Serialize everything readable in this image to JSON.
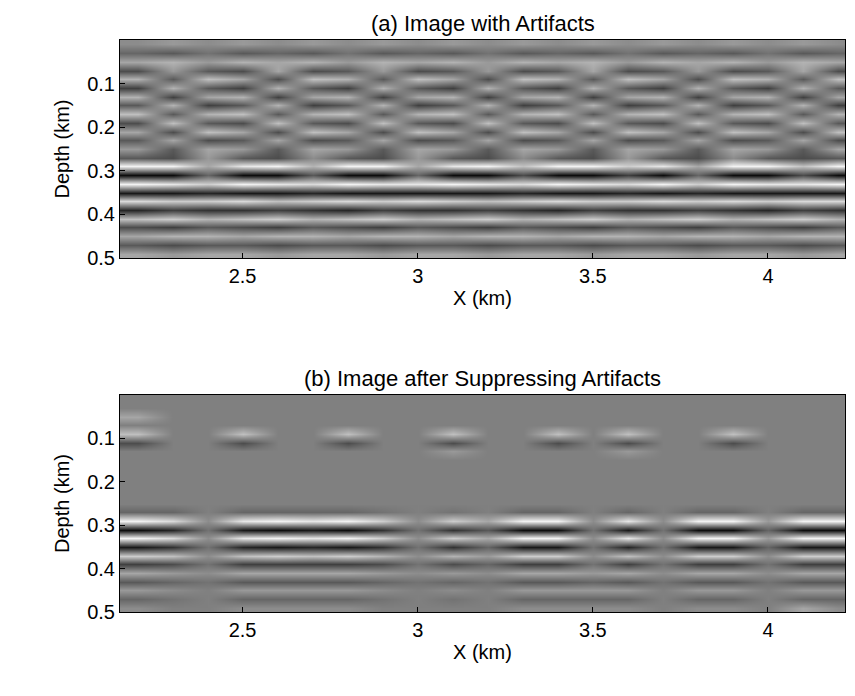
{
  "chart_data": [
    {
      "type": "heatmap",
      "title": "(a) Image with Artifacts",
      "xlabel": "X (km)",
      "ylabel": "Depth (km)",
      "x": [
        2.2,
        2.3,
        2.4,
        2.5,
        2.6,
        2.7,
        2.8,
        2.9,
        3.0,
        3.1,
        3.2,
        3.3,
        3.4,
        3.5,
        3.6,
        3.7,
        3.8,
        3.9,
        4.0,
        4.1,
        4.2
      ],
      "y": [
        0.01,
        0.03,
        0.05,
        0.07,
        0.09,
        0.11,
        0.13,
        0.15,
        0.17,
        0.19,
        0.21,
        0.23,
        0.25,
        0.27,
        0.29,
        0.31,
        0.33,
        0.35,
        0.37,
        0.39,
        0.41,
        0.43,
        0.45,
        0.47,
        0.49
      ],
      "z": [
        [
          0.1,
          0.2,
          0.1,
          0.2,
          0.1,
          0.2,
          0.1,
          0.2,
          0.1,
          0.2,
          0.1,
          0.2,
          0.1,
          0.2,
          0.1,
          0.2,
          0.1,
          0.2,
          0.1,
          0.2,
          0.1
        ],
        [
          -0.2,
          -0.3,
          -0.1,
          -0.3,
          -0.2,
          -0.3,
          -0.1,
          -0.3,
          -0.2,
          -0.3,
          -0.1,
          -0.3,
          -0.2,
          -0.3,
          -0.1,
          -0.3,
          -0.2,
          -0.3,
          -0.1,
          -0.3,
          -0.2
        ],
        [
          0.3,
          0.4,
          0.2,
          0.4,
          0.3,
          0.4,
          0.2,
          0.4,
          0.3,
          0.4,
          0.2,
          0.4,
          0.3,
          0.4,
          0.2,
          0.4,
          0.3,
          0.4,
          0.2,
          0.4,
          0.3
        ],
        [
          -0.4,
          0.2,
          -0.3,
          -0.4,
          0.3,
          -0.4,
          -0.3,
          0.2,
          -0.4,
          -0.3,
          0.2,
          -0.4,
          -0.3,
          0.3,
          -0.4,
          -0.3,
          0.2,
          -0.4,
          -0.3,
          0.3,
          -0.4
        ],
        [
          0.4,
          -0.3,
          0.5,
          0.3,
          -0.4,
          0.5,
          0.4,
          -0.3,
          0.5,
          0.3,
          -0.4,
          0.5,
          0.4,
          -0.3,
          0.5,
          0.3,
          -0.4,
          0.5,
          0.4,
          -0.3,
          0.5
        ],
        [
          -0.5,
          0.4,
          -0.3,
          -0.5,
          0.4,
          -0.3,
          -0.5,
          0.4,
          -0.3,
          -0.5,
          0.4,
          -0.3,
          -0.5,
          0.4,
          -0.3,
          -0.5,
          0.4,
          -0.3,
          -0.5,
          0.4,
          -0.3
        ],
        [
          0.4,
          -0.5,
          0.3,
          0.4,
          -0.5,
          0.3,
          0.4,
          -0.5,
          0.3,
          0.4,
          -0.5,
          0.3,
          0.4,
          -0.5,
          0.3,
          0.4,
          -0.5,
          0.3,
          0.4,
          -0.5,
          0.3
        ],
        [
          -0.3,
          0.4,
          -0.5,
          -0.3,
          0.4,
          -0.5,
          -0.3,
          0.4,
          -0.5,
          -0.3,
          0.4,
          -0.5,
          -0.3,
          0.4,
          -0.5,
          -0.3,
          0.4,
          -0.5,
          -0.3,
          0.4,
          -0.5
        ],
        [
          0.5,
          -0.3,
          0.4,
          0.5,
          -0.3,
          0.4,
          0.5,
          -0.3,
          0.4,
          0.5,
          -0.3,
          0.4,
          0.5,
          -0.3,
          0.4,
          0.5,
          -0.3,
          0.4,
          0.5,
          -0.3,
          0.4
        ],
        [
          -0.4,
          0.5,
          -0.3,
          -0.4,
          0.5,
          -0.3,
          -0.4,
          0.5,
          -0.3,
          -0.4,
          0.5,
          -0.3,
          -0.4,
          0.5,
          -0.3,
          -0.4,
          0.5,
          -0.3,
          -0.4,
          0.5,
          -0.3
        ],
        [
          0.3,
          -0.4,
          0.5,
          0.3,
          -0.4,
          0.5,
          0.3,
          -0.4,
          0.5,
          0.3,
          -0.4,
          0.5,
          0.3,
          -0.4,
          0.5,
          0.3,
          -0.4,
          0.5,
          0.3,
          -0.4,
          0.5
        ],
        [
          -0.3,
          0.3,
          -0.4,
          -0.3,
          0.3,
          -0.4,
          -0.3,
          0.3,
          -0.4,
          -0.3,
          0.3,
          -0.4,
          -0.3,
          0.3,
          -0.4,
          -0.3,
          0.3,
          -0.4,
          -0.3,
          0.3,
          -0.4
        ],
        [
          0.2,
          -0.3,
          0.3,
          0.2,
          -0.3,
          0.3,
          0.2,
          -0.3,
          0.3,
          0.2,
          -0.3,
          0.3,
          0.2,
          -0.3,
          0.3,
          0.2,
          -0.3,
          0.3,
          0.2,
          -0.3,
          0.3
        ],
        [
          -0.3,
          -0.4,
          0.2,
          -0.3,
          -0.4,
          0.1,
          -0.3,
          -0.4,
          0.2,
          -0.3,
          -0.4,
          0.1,
          -0.3,
          -0.4,
          0.2,
          -0.3,
          -0.4,
          0.1,
          -0.3,
          -0.4,
          -0.3
        ],
        [
          0.9,
          0.9,
          0.3,
          0.8,
          0.9,
          0.4,
          0.9,
          0.9,
          0.3,
          0.8,
          0.9,
          0.5,
          0.9,
          0.9,
          0.6,
          0.8,
          0.3,
          0.9,
          0.9,
          0.5,
          0.9
        ],
        [
          -0.9,
          -0.9,
          -0.2,
          -0.9,
          -0.9,
          -0.3,
          -0.9,
          -0.9,
          -0.2,
          -0.9,
          -0.9,
          -0.4,
          -0.9,
          -0.9,
          -0.5,
          -0.9,
          -0.2,
          -0.9,
          -0.9,
          -0.4,
          -0.9
        ],
        [
          0.9,
          0.8,
          0.6,
          0.9,
          0.8,
          0.7,
          0.9,
          0.8,
          0.8,
          0.9,
          0.8,
          0.7,
          0.9,
          0.8,
          0.7,
          0.9,
          0.6,
          0.9,
          0.8,
          0.8,
          0.9
        ],
        [
          -0.8,
          -0.8,
          -0.7,
          -0.8,
          -0.8,
          -0.7,
          -0.8,
          -0.8,
          -0.8,
          -0.8,
          -0.8,
          -0.7,
          -0.8,
          -0.8,
          -0.7,
          -0.8,
          -0.7,
          -0.8,
          -0.8,
          -0.8,
          -0.8
        ],
        [
          0.7,
          0.6,
          0.6,
          0.7,
          0.5,
          0.6,
          0.7,
          0.6,
          0.7,
          0.6,
          0.5,
          0.6,
          0.7,
          0.6,
          0.6,
          0.7,
          0.6,
          0.7,
          0.6,
          0.7,
          0.7
        ],
        [
          -0.7,
          -0.5,
          -0.6,
          -0.6,
          -0.5,
          -0.6,
          -0.7,
          -0.5,
          -0.6,
          -0.6,
          -0.5,
          -0.6,
          -0.7,
          -0.5,
          -0.6,
          -0.6,
          -0.5,
          -0.6,
          -0.7,
          -0.5,
          -0.6
        ],
        [
          0.5,
          0.6,
          0.4,
          0.5,
          0.6,
          0.4,
          0.5,
          0.6,
          0.4,
          0.5,
          0.6,
          0.4,
          0.5,
          0.6,
          0.4,
          0.5,
          0.6,
          0.4,
          0.5,
          0.6,
          0.4
        ],
        [
          -0.4,
          -0.5,
          -0.3,
          -0.4,
          -0.5,
          -0.3,
          -0.4,
          -0.5,
          -0.3,
          -0.4,
          -0.5,
          -0.3,
          -0.4,
          -0.5,
          -0.3,
          -0.4,
          -0.5,
          -0.3,
          -0.4,
          -0.5,
          -0.3
        ],
        [
          0.3,
          0.4,
          0.4,
          0.3,
          0.4,
          0.4,
          0.3,
          0.4,
          0.4,
          0.3,
          0.4,
          0.4,
          0.3,
          0.4,
          0.4,
          0.3,
          0.4,
          0.4,
          0.3,
          0.4,
          0.4
        ],
        [
          -0.3,
          -0.4,
          -0.3,
          -0.3,
          -0.4,
          -0.3,
          -0.3,
          -0.4,
          -0.3,
          -0.3,
          -0.4,
          -0.3,
          -0.3,
          -0.4,
          -0.3,
          -0.3,
          -0.4,
          -0.3,
          -0.3,
          -0.4,
          -0.3
        ],
        [
          0.3,
          0.2,
          0.3,
          0.3,
          0.2,
          0.3,
          0.3,
          0.2,
          0.3,
          0.3,
          0.2,
          0.3,
          0.3,
          0.2,
          0.3,
          0.3,
          0.2,
          0.3,
          0.3,
          0.2,
          0.3
        ]
      ],
      "zlim": [
        -1,
        1
      ],
      "xlim": [
        2.15,
        4.22
      ],
      "xticks": [
        2.5,
        3,
        3.5,
        4
      ],
      "ylim": [
        0.5,
        0
      ],
      "yticks": [
        0.1,
        0.2,
        0.3,
        0.4,
        0.5
      ]
    },
    {
      "type": "heatmap",
      "title": "(b) Image after Suppressing Artifacts",
      "xlabel": "X (km)",
      "ylabel": "Depth (km)",
      "x": [
        2.2,
        2.3,
        2.4,
        2.5,
        2.6,
        2.7,
        2.8,
        2.9,
        3.0,
        3.1,
        3.2,
        3.3,
        3.4,
        3.5,
        3.6,
        3.7,
        3.8,
        3.9,
        4.0,
        4.1,
        4.2
      ],
      "y": [
        0.01,
        0.03,
        0.05,
        0.07,
        0.09,
        0.11,
        0.13,
        0.15,
        0.17,
        0.19,
        0.21,
        0.23,
        0.25,
        0.27,
        0.29,
        0.31,
        0.33,
        0.35,
        0.37,
        0.39,
        0.41,
        0.43,
        0.45,
        0.47,
        0.49
      ],
      "z": [
        [
          0,
          0,
          0,
          0,
          0,
          0,
          0,
          0,
          0,
          0,
          0,
          0,
          0,
          0,
          0,
          0,
          0,
          0,
          0,
          0,
          0
        ],
        [
          0,
          0,
          0,
          0,
          0,
          0,
          0,
          0,
          0,
          0,
          0,
          0,
          0,
          0,
          0,
          0,
          0,
          0,
          0,
          0,
          0
        ],
        [
          0.3,
          0,
          0,
          0,
          0,
          0,
          0,
          0,
          0,
          0,
          0,
          0,
          0,
          0,
          0,
          0,
          0,
          0,
          0,
          0,
          0
        ],
        [
          0,
          0,
          0,
          0,
          0,
          0,
          0,
          0,
          0,
          0,
          0,
          0,
          0,
          0,
          0,
          0,
          0,
          0,
          0,
          0,
          0
        ],
        [
          0.5,
          0,
          0,
          0.5,
          0,
          0,
          0.5,
          0,
          0,
          0.5,
          0,
          0,
          0.5,
          0,
          0.5,
          0,
          0,
          0.5,
          0,
          0,
          0
        ],
        [
          -0.4,
          0,
          0,
          -0.4,
          0,
          0,
          -0.4,
          0,
          0,
          -0.4,
          0,
          0,
          -0.4,
          0,
          -0.4,
          0,
          0,
          -0.4,
          0,
          0,
          0
        ],
        [
          0,
          0,
          0,
          0,
          0,
          0,
          0,
          0,
          0,
          0.2,
          0,
          0,
          0,
          0,
          0.2,
          0,
          0,
          0,
          0,
          0,
          0
        ],
        [
          0,
          0,
          0,
          0,
          0,
          0,
          0,
          0,
          0,
          0,
          0,
          0,
          0,
          0,
          0,
          0,
          0,
          0,
          0,
          0,
          0
        ],
        [
          0,
          0,
          0,
          0,
          0,
          0,
          0,
          0,
          0,
          0,
          0,
          0,
          0,
          0,
          0,
          0,
          0,
          0,
          0,
          0,
          0
        ],
        [
          0,
          0,
          0,
          0,
          0,
          0,
          0,
          0,
          0,
          0,
          0,
          0,
          0,
          0,
          0,
          0,
          0,
          0,
          0,
          0,
          0
        ],
        [
          0,
          0,
          0,
          0,
          0,
          0,
          0,
          0,
          0,
          0,
          0,
          0,
          0,
          0,
          0,
          0,
          0,
          0,
          0,
          0,
          0
        ],
        [
          0,
          0,
          0,
          0,
          0,
          0,
          0,
          0,
          0,
          0,
          0,
          0,
          0,
          0,
          0,
          0,
          0,
          0,
          0,
          0,
          0
        ],
        [
          0,
          0,
          0,
          0,
          0,
          0,
          0,
          0,
          0,
          0,
          0,
          0,
          0,
          0,
          0,
          0,
          0,
          0,
          0,
          0,
          0
        ],
        [
          -0.2,
          -0.2,
          0,
          -0.2,
          -0.2,
          -0.2,
          -0.2,
          -0.1,
          0,
          -0.1,
          0,
          -0.2,
          -0.2,
          0,
          -0.2,
          0,
          -0.2,
          -0.2,
          0,
          -0.2,
          -0.2
        ],
        [
          0.9,
          0.7,
          0.1,
          0.8,
          0.9,
          0.8,
          0.9,
          0.6,
          0.1,
          0.6,
          0.3,
          0.9,
          0.9,
          0.1,
          0.8,
          0.1,
          0.9,
          0.9,
          0.2,
          0.9,
          0.9
        ],
        [
          -0.9,
          -0.7,
          -0.1,
          -0.8,
          -0.9,
          -0.8,
          -0.9,
          -0.6,
          -0.1,
          -0.6,
          -0.3,
          -0.9,
          -0.9,
          -0.1,
          -0.8,
          -0.1,
          -0.9,
          -0.9,
          -0.2,
          -0.9,
          -0.9
        ],
        [
          0.9,
          0.7,
          0.1,
          0.8,
          0.9,
          0.8,
          0.9,
          0.6,
          0.1,
          0.6,
          0.3,
          0.9,
          0.9,
          0.1,
          0.8,
          0.1,
          0.9,
          0.9,
          0.2,
          0.9,
          0.9
        ],
        [
          -0.8,
          -0.6,
          -0.1,
          -0.7,
          -0.8,
          -0.7,
          -0.8,
          -0.6,
          -0.1,
          -0.6,
          -0.2,
          -0.8,
          -0.8,
          -0.1,
          -0.7,
          -0.1,
          -0.8,
          -0.8,
          -0.2,
          -0.8,
          -0.8
        ],
        [
          0.6,
          0.5,
          0.1,
          0.5,
          0.6,
          0.5,
          0.6,
          0.4,
          0.1,
          0.4,
          0.2,
          0.6,
          0.6,
          0.1,
          0.5,
          0.1,
          0.6,
          0.6,
          0.1,
          0.6,
          0.6
        ],
        [
          -0.5,
          -0.4,
          -0.1,
          -0.5,
          -0.5,
          -0.5,
          -0.5,
          -0.4,
          -0.1,
          -0.4,
          -0.2,
          -0.5,
          -0.5,
          -0.1,
          -0.5,
          -0.1,
          -0.5,
          -0.5,
          -0.1,
          -0.5,
          -0.5
        ],
        [
          0.3,
          0.2,
          0.1,
          0.3,
          0.3,
          0.3,
          0.3,
          0.2,
          0.1,
          0.2,
          0.1,
          0.3,
          0.3,
          0.2,
          0.3,
          0.1,
          0.3,
          0.3,
          0.1,
          0.3,
          0.3
        ],
        [
          -0.3,
          -0.2,
          -0.1,
          -0.3,
          -0.3,
          -0.3,
          -0.3,
          -0.2,
          -0.1,
          -0.2,
          -0.1,
          -0.3,
          -0.3,
          -0.2,
          -0.3,
          -0.1,
          -0.3,
          -0.3,
          -0.1,
          -0.3,
          -0.3
        ],
        [
          0.2,
          0.1,
          0,
          0.2,
          0.2,
          0.2,
          0.2,
          0.1,
          0,
          0.1,
          0,
          0.2,
          0.2,
          0.2,
          0.2,
          0,
          0.2,
          0.2,
          0,
          0.2,
          0.2
        ],
        [
          -0.2,
          -0.1,
          0,
          -0.2,
          -0.2,
          -0.2,
          -0.2,
          -0.1,
          0,
          -0.1,
          0,
          -0.2,
          -0.2,
          -0.2,
          -0.2,
          0,
          -0.2,
          -0.2,
          0,
          -0.2,
          -0.2
        ],
        [
          0.1,
          0,
          0,
          0.1,
          0.1,
          0.1,
          0.1,
          0,
          0,
          0,
          0,
          0.1,
          0.1,
          0.1,
          0.1,
          0,
          0.1,
          0.1,
          0,
          0.3,
          0.1
        ]
      ],
      "zlim": [
        -1,
        1
      ],
      "xlim": [
        2.15,
        4.22
      ],
      "xticks": [
        2.5,
        3,
        3.5,
        4
      ],
      "ylim": [
        0.5,
        0
      ],
      "yticks": [
        0.1,
        0.2,
        0.3,
        0.4,
        0.5
      ]
    }
  ]
}
